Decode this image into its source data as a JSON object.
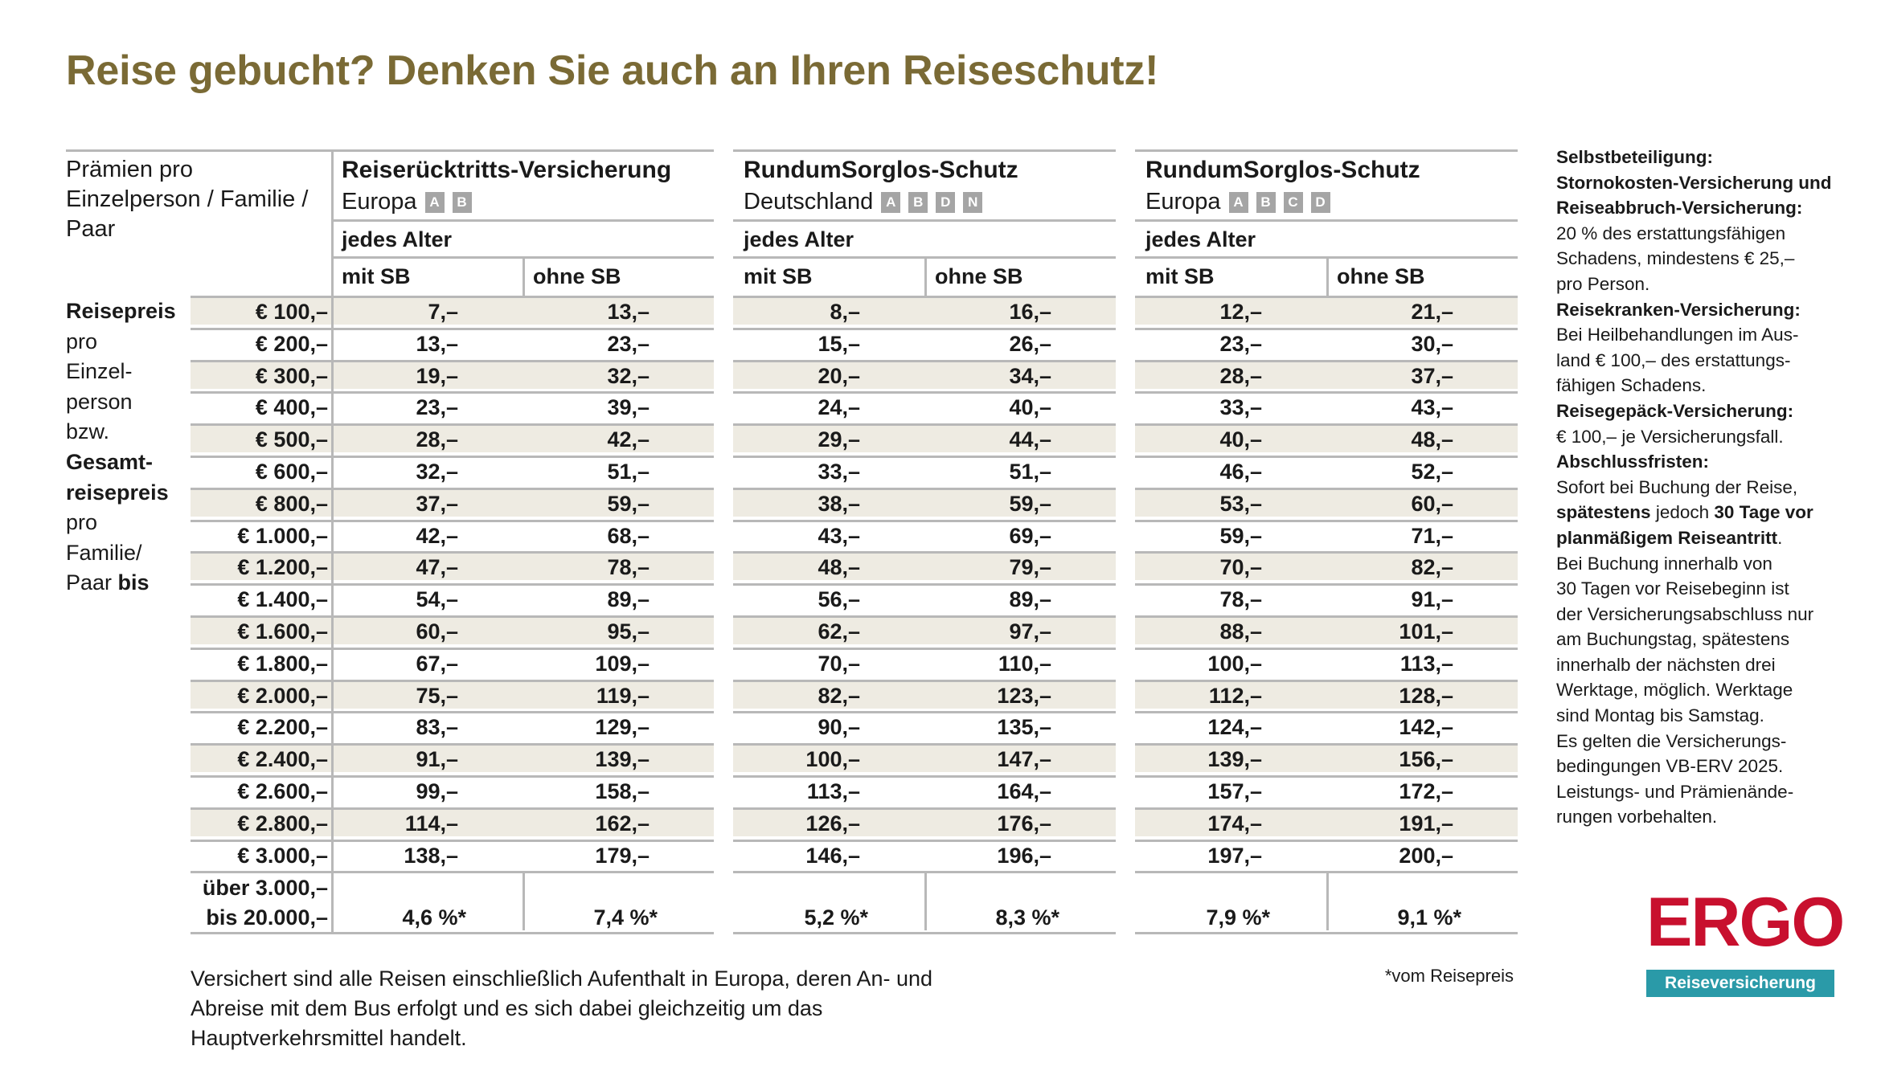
{
  "title": "Reise gebucht? Denken Sie auch an Ihren Reiseschutz!",
  "header_left": [
    "Prämien pro",
    "Einzelperson / Familie /",
    "Paar"
  ],
  "row_label": {
    "lines": [
      {
        "text": "Reisepreis",
        "bold": true
      },
      {
        "text": "pro",
        "bold": false
      },
      {
        "text": "Einzel-",
        "bold": false
      },
      {
        "text": "person",
        "bold": false
      },
      {
        "text": "bzw.",
        "bold": false
      },
      {
        "text": "Gesamt-",
        "bold": true
      },
      {
        "text": "reisepreis",
        "bold": true
      },
      {
        "text": "pro",
        "bold": false
      },
      {
        "text": "Familie/",
        "bold": false
      }
    ],
    "last_line_normal": "Paar ",
    "last_line_bold": "bis"
  },
  "groups": [
    {
      "title": "Reiserücktritts-Versicherung",
      "region": "Europa",
      "badges": [
        "A",
        "B"
      ],
      "age": "jedes Alter",
      "col1": "mit SB",
      "col2": "ohne SB"
    },
    {
      "title": "RundumSorglos-Schutz",
      "region": "Deutschland",
      "badges": [
        "A",
        "B",
        "D",
        "N"
      ],
      "age": "jedes Alter",
      "col1": "mit SB",
      "col2": "ohne SB"
    },
    {
      "title": "RundumSorglos-Schutz",
      "region": "Europa",
      "badges": [
        "A",
        "B",
        "C",
        "D"
      ],
      "age": "jedes Alter",
      "col1": "mit SB",
      "col2": "ohne SB"
    }
  ],
  "rows": [
    {
      "price": "€ 100,–",
      "values": [
        "7,–",
        "13,–",
        "8,–",
        "16,–",
        "12,–",
        "21,–"
      ]
    },
    {
      "price": "€ 200,–",
      "values": [
        "13,–",
        "23,–",
        "15,–",
        "26,–",
        "23,–",
        "30,–"
      ]
    },
    {
      "price": "€ 300,–",
      "values": [
        "19,–",
        "32,–",
        "20,–",
        "34,–",
        "28,–",
        "37,–"
      ]
    },
    {
      "price": "€ 400,–",
      "values": [
        "23,–",
        "39,–",
        "24,–",
        "40,–",
        "33,–",
        "43,–"
      ]
    },
    {
      "price": "€ 500,–",
      "values": [
        "28,–",
        "42,–",
        "29,–",
        "44,–",
        "40,–",
        "48,–"
      ]
    },
    {
      "price": "€ 600,–",
      "values": [
        "32,–",
        "51,–",
        "33,–",
        "51,–",
        "46,–",
        "52,–"
      ]
    },
    {
      "price": "€ 800,–",
      "values": [
        "37,–",
        "59,–",
        "38,–",
        "59,–",
        "53,–",
        "60,–"
      ]
    },
    {
      "price": "€ 1.000,–",
      "values": [
        "42,–",
        "68,–",
        "43,–",
        "69,–",
        "59,–",
        "71,–"
      ]
    },
    {
      "price": "€ 1.200,–",
      "values": [
        "47,–",
        "78,–",
        "48,–",
        "79,–",
        "70,–",
        "82,–"
      ]
    },
    {
      "price": "€ 1.400,–",
      "values": [
        "54,–",
        "89,–",
        "56,–",
        "89,–",
        "78,–",
        "91,–"
      ]
    },
    {
      "price": "€ 1.600,–",
      "values": [
        "60,–",
        "95,–",
        "62,–",
        "97,–",
        "88,–",
        "101,–"
      ]
    },
    {
      "price": "€ 1.800,–",
      "values": [
        "67,–",
        "109,–",
        "70,–",
        "110,–",
        "100,–",
        "113,–"
      ]
    },
    {
      "price": "€ 2.000,–",
      "values": [
        "75,–",
        "119,–",
        "82,–",
        "123,–",
        "112,–",
        "128,–"
      ]
    },
    {
      "price": "€ 2.200,–",
      "values": [
        "83,–",
        "129,–",
        "90,–",
        "135,–",
        "124,–",
        "142,–"
      ]
    },
    {
      "price": "€ 2.400,–",
      "values": [
        "91,–",
        "139,–",
        "100,–",
        "147,–",
        "139,–",
        "156,–"
      ]
    },
    {
      "price": "€ 2.600,–",
      "values": [
        "99,–",
        "158,–",
        "113,–",
        "164,–",
        "157,–",
        "172,–"
      ]
    },
    {
      "price": "€ 2.800,–",
      "values": [
        "114,–",
        "162,–",
        "126,–",
        "176,–",
        "174,–",
        "191,–"
      ]
    },
    {
      "price": "€ 3.000,–",
      "values": [
        "138,–",
        "179,–",
        "146,–",
        "196,–",
        "197,–",
        "200,–"
      ]
    }
  ],
  "last_row": {
    "label1": "über 3.000,–",
    "label2": "bis 20.000,–",
    "values": [
      "4,6 %*",
      "7,4 %*",
      "5,2 %*",
      "8,3 %*",
      "7,9 %*",
      "9,1 %*"
    ]
  },
  "sidebar": [
    {
      "text": "Selbstbeteiligung:",
      "bold": true
    },
    {
      "text": "Stornokosten-Versicherung und",
      "bold": true
    },
    {
      "text": "Reiseabbruch-Versicherung:",
      "bold": true
    },
    {
      "text": "20 % des erstattungsfähigen",
      "bold": false
    },
    {
      "text": "Schadens, mindestens € 25,–",
      "bold": false
    },
    {
      "text": "pro Person.",
      "bold": false
    },
    {
      "text": "Reisekranken-Versicherung:",
      "bold": true
    },
    {
      "text": "Bei Heilbehandlungen im Aus-",
      "bold": false
    },
    {
      "text": "land € 100,– des erstattungs-",
      "bold": false
    },
    {
      "text": "fähigen Schadens.",
      "bold": false
    },
    {
      "text": "Reisegepäck-Versicherung:",
      "bold": true
    },
    {
      "text": "€ 100,– je Versicherungsfall.",
      "bold": false
    },
    {
      "text": "Abschlussfristen:",
      "bold": true
    },
    {
      "text": "Sofort bei Buchung der Reise,",
      "bold": false
    },
    {
      "parts": [
        {
          "text": "spätestens",
          "bold": true
        },
        {
          "text": " jedoch ",
          "bold": false
        },
        {
          "text": "30 Tage vor",
          "bold": true
        }
      ]
    },
    {
      "parts": [
        {
          "text": "planmäßigem Reiseantritt",
          "bold": true
        },
        {
          "text": ".",
          "bold": false
        }
      ]
    },
    {
      "text": "Bei Buchung innerhalb von",
      "bold": false
    },
    {
      "text": "30 Tagen vor Reisebeginn ist",
      "bold": false
    },
    {
      "text": "der Versicherungsabschluss nur",
      "bold": false
    },
    {
      "text": "am Buchungstag, spätestens",
      "bold": false
    },
    {
      "text": "innerhalb der nächsten drei",
      "bold": false
    },
    {
      "text": "Werktage, möglich. Werktage",
      "bold": false
    },
    {
      "text": "sind Montag bis Samstag.",
      "bold": false
    },
    {
      "text": "Es gelten die Versicherungs-",
      "bold": false
    },
    {
      "text": "bedingungen VB-ERV 2025.",
      "bold": false
    },
    {
      "text": "Leistungs- und Prämienände-",
      "bold": false
    },
    {
      "text": "rungen vorbehalten.",
      "bold": false
    }
  ],
  "footnote": "Versichert sind alle Reisen einschließlich Aufenthalt in Europa, deren An- und Abreise mit dem Bus erfolgt und es sich dabei gleichzeitig um das Hauptverkehrsmittel handelt.",
  "asterisk_note": "*vom Reisepreis",
  "logo": {
    "wordmark": "ERGO",
    "tagline": "Reiseversicherung",
    "brand_color": "#c8102e",
    "bar_color": "#2a9aa8"
  },
  "colors": {
    "title": "#7a6a35",
    "band": "#eeebe2",
    "badge": "#a5a5a5"
  }
}
